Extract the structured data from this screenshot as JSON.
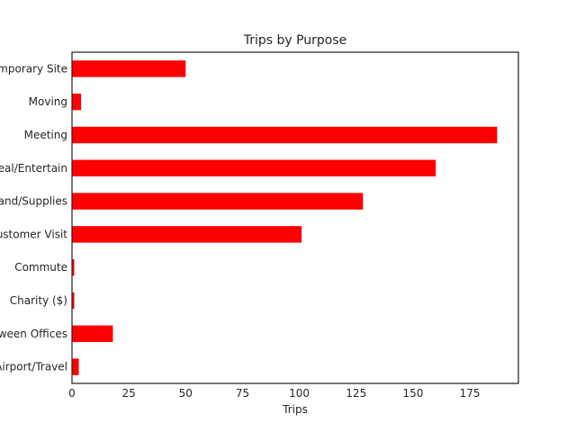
{
  "chart_data": {
    "type": "bar",
    "orientation": "horizontal",
    "title": "Trips by Purpose",
    "xlabel": "Trips",
    "ylabel": "",
    "xlim": [
      0,
      196.35
    ],
    "xticks": [
      0,
      25,
      50,
      75,
      100,
      125,
      150,
      175
    ],
    "categories": [
      "Airport/Travel",
      "Between Offices",
      "Charity ($)",
      "Commute",
      "Customer Visit",
      "Errand/Supplies",
      "Meal/Entertain",
      "Meeting",
      "Moving",
      "Temporary Site"
    ],
    "values": [
      3,
      18,
      1,
      1,
      101,
      128,
      160,
      187,
      4,
      50
    ],
    "bar_color": "#ff0000",
    "grid": false,
    "legend": "none"
  }
}
